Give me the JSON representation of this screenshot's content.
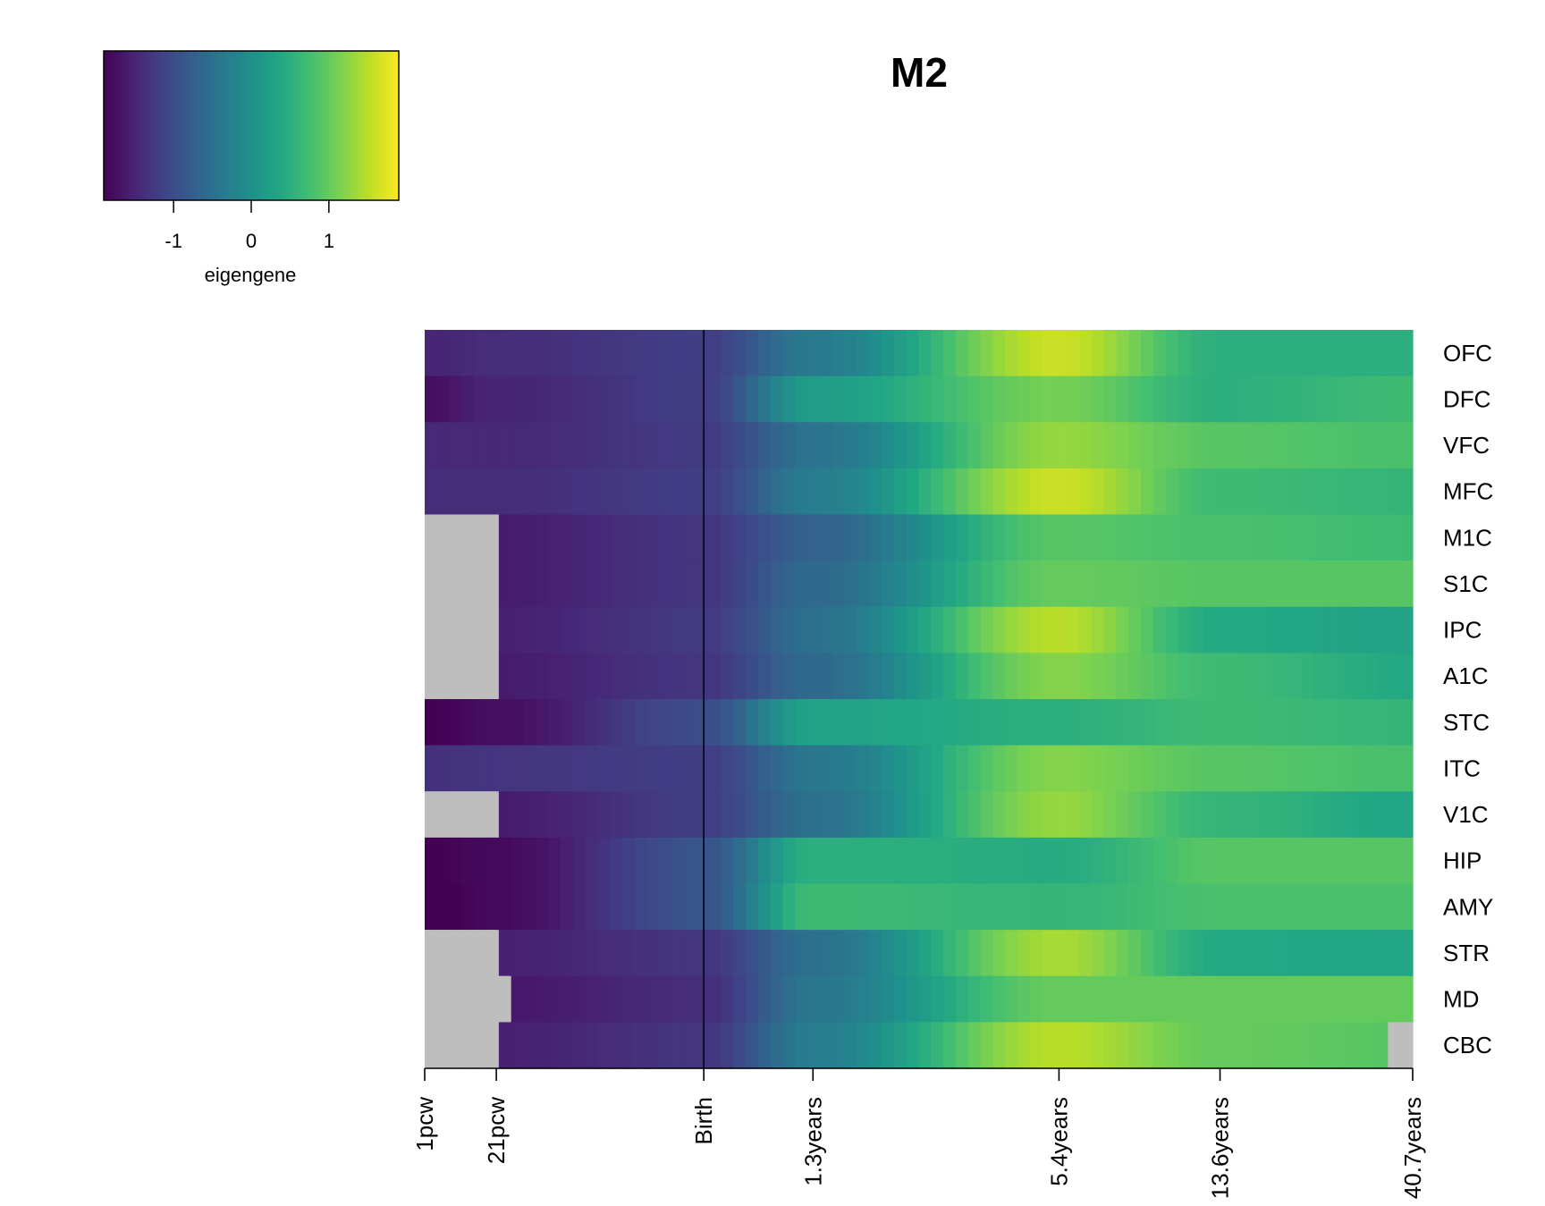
{
  "chart_data": {
    "type": "heatmap",
    "title": "M2",
    "legend": {
      "label": "eigengene",
      "ticks": [
        -1,
        0,
        1
      ],
      "range": [
        -1.9,
        1.9
      ],
      "placement": "top-left",
      "colormap": "viridis"
    },
    "na_color": "#bebebe",
    "rows": [
      "OFC",
      "DFC",
      "VFC",
      "MFC",
      "M1C",
      "S1C",
      "IPC",
      "A1C",
      "STC",
      "ITC",
      "V1C",
      "HIP",
      "AMY",
      "STR",
      "MD",
      "CBC"
    ],
    "x_ticks": [
      {
        "label": "1pcw",
        "pos": 0
      },
      {
        "label": "21pcw",
        "pos": 0.0725
      },
      {
        "label": "Birth",
        "pos": 0.2825
      },
      {
        "label": "1.3years",
        "pos": 0.393
      },
      {
        "label": "5.4years",
        "pos": 0.642
      },
      {
        "label": "13.6years",
        "pos": 0.805
      },
      {
        "label": "40.7years",
        "pos": 1
      }
    ],
    "vline_at": "Birth",
    "x_knots": [
      0,
      0.0725,
      0.2825,
      0.393,
      0.642,
      0.805,
      1
    ],
    "series": [
      {
        "name": "OFC",
        "missing_before": 0,
        "missing_after": 1,
        "values": [
          -1.5,
          -1.4,
          -1.2,
          -0.35,
          1.6,
          0.5,
          0.5
        ]
      },
      {
        "name": "DFC",
        "missing_before": 0,
        "missing_after": 1,
        "values": [
          -1.75,
          -1.5,
          -1.2,
          0.2,
          1.1,
          0.5,
          0.7
        ]
      },
      {
        "name": "VFC",
        "missing_before": 0,
        "missing_after": 1,
        "values": [
          -1.45,
          -1.45,
          -1.25,
          -0.45,
          1.3,
          0.9,
          0.8
        ]
      },
      {
        "name": "MFC",
        "missing_before": 0,
        "missing_after": 1,
        "values": [
          -1.4,
          -1.4,
          -1.2,
          -0.3,
          1.6,
          0.7,
          0.6
        ]
      },
      {
        "name": "M1C",
        "missing_before": 0.0725,
        "missing_after": 1,
        "values": [
          -1.6,
          -1.6,
          -1.3,
          -0.7,
          0.9,
          0.8,
          0.7
        ]
      },
      {
        "name": "S1C",
        "missing_before": 0.0725,
        "missing_after": 1,
        "values": [
          -1.7,
          -1.6,
          -1.3,
          -0.6,
          1.0,
          0.9,
          0.9
        ]
      },
      {
        "name": "IPC",
        "missing_before": 0.0725,
        "missing_after": 1,
        "values": [
          -1.6,
          -1.55,
          -1.25,
          -0.5,
          1.5,
          0.4,
          0.3
        ]
      },
      {
        "name": "A1C",
        "missing_before": 0.0725,
        "missing_after": 1,
        "values": [
          -1.6,
          -1.6,
          -1.3,
          -0.6,
          1.2,
          0.7,
          0.4
        ]
      },
      {
        "name": "STC",
        "missing_before": 0,
        "missing_after": 1,
        "values": [
          -1.9,
          -1.75,
          -1.0,
          0.3,
          0.5,
          0.7,
          0.6
        ]
      },
      {
        "name": "ITC",
        "missing_before": 0,
        "missing_after": 1,
        "values": [
          -1.35,
          -1.3,
          -1.2,
          -0.4,
          1.2,
          0.9,
          0.8
        ]
      },
      {
        "name": "V1C",
        "missing_before": 0.0725,
        "missing_after": 1,
        "values": [
          -1.6,
          -1.6,
          -1.2,
          -0.5,
          1.3,
          0.6,
          0.35
        ]
      },
      {
        "name": "HIP",
        "missing_before": 0,
        "missing_after": 1,
        "values": [
          -1.9,
          -1.8,
          -0.9,
          0.5,
          0.45,
          0.9,
          0.9
        ]
      },
      {
        "name": "AMY",
        "missing_before": 0,
        "missing_after": 1,
        "values": [
          -1.95,
          -1.8,
          -0.9,
          0.7,
          0.6,
          0.8,
          0.8
        ]
      },
      {
        "name": "STR",
        "missing_before": 0.0725,
        "missing_after": 1,
        "values": [
          -1.6,
          -1.55,
          -1.3,
          -0.5,
          1.4,
          0.4,
          0.35
        ]
      },
      {
        "name": "MD",
        "missing_before": 0.0855,
        "missing_after": 1,
        "values": [
          -1.7,
          -1.65,
          -1.4,
          -0.4,
          1.0,
          1.0,
          1.0
        ]
      },
      {
        "name": "CBC",
        "missing_before": 0.0725,
        "missing_after": 0.981,
        "values": [
          -1.6,
          -1.55,
          -1.3,
          -0.3,
          1.5,
          1.0,
          0.9
        ]
      }
    ]
  }
}
